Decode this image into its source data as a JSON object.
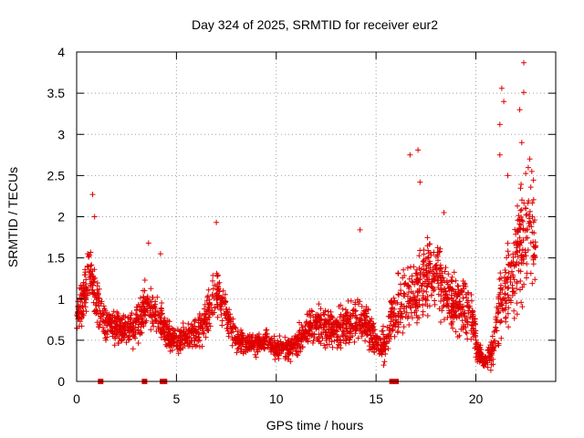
{
  "chart_data": {
    "type": "scatter",
    "title": "Day 324 of 2025, SRMTID for receiver eur2",
    "xlabel": "GPS time / hours",
    "ylabel": "SRMTID / TECUs",
    "xlim": [
      0,
      24
    ],
    "ylim": [
      0,
      4
    ],
    "grid": true,
    "marker": "+",
    "color": "#e00000",
    "x_ticks": [
      0,
      5,
      10,
      15,
      20
    ],
    "x_tick_labels": [
      "0",
      "5",
      "10",
      "15",
      "20"
    ],
    "y_ticks": [
      0,
      0.5,
      1,
      1.5,
      2,
      2.5,
      3,
      3.5,
      4
    ],
    "y_tick_labels": [
      "0",
      "0.5",
      "1",
      "1.5",
      "2",
      "2.5",
      "3",
      "3.5",
      "4"
    ],
    "profile": {
      "description": "Smoothed typical SRMTID level (TECU) vs GPS hour, with upper spread, used to represent the dense point cloud",
      "hours": [
        0,
        0.3,
        0.6,
        0.9,
        1.2,
        1.5,
        2,
        2.5,
        3,
        3.4,
        3.8,
        4.2,
        4.6,
        5,
        5.5,
        6,
        6.5,
        6.8,
        7.1,
        7.5,
        8,
        8.5,
        9,
        9.5,
        10,
        10.5,
        11,
        11.5,
        12,
        12.5,
        13,
        13.5,
        14,
        14.5,
        15,
        15.4,
        15.8,
        16.2,
        16.6,
        17,
        17.5,
        18,
        18.5,
        19,
        19.5,
        19.8,
        20.1,
        20.4,
        20.8,
        21.2,
        21.5,
        21.8,
        22.1,
        22.4,
        22.7,
        23
      ],
      "level": [
        0.8,
        1.0,
        1.35,
        1.1,
        0.8,
        0.7,
        0.65,
        0.6,
        0.7,
        0.9,
        0.85,
        0.75,
        0.55,
        0.5,
        0.55,
        0.6,
        0.75,
        1.0,
        1.05,
        0.8,
        0.5,
        0.45,
        0.45,
        0.5,
        0.4,
        0.4,
        0.45,
        0.6,
        0.7,
        0.65,
        0.6,
        0.7,
        0.75,
        0.7,
        0.45,
        0.4,
        0.8,
        0.9,
        1.05,
        1.1,
        1.25,
        1.35,
        1.05,
        0.9,
        0.9,
        0.8,
        0.35,
        0.25,
        0.35,
        0.9,
        1.1,
        1.2,
        1.6,
        1.7,
        2.0,
        1.5
      ],
      "spread": [
        0.3,
        0.4,
        0.45,
        0.4,
        0.35,
        0.3,
        0.25,
        0.25,
        0.3,
        0.35,
        0.3,
        0.25,
        0.2,
        0.2,
        0.2,
        0.25,
        0.3,
        0.4,
        0.35,
        0.3,
        0.2,
        0.15,
        0.15,
        0.15,
        0.15,
        0.15,
        0.2,
        0.25,
        0.3,
        0.3,
        0.3,
        0.35,
        0.4,
        0.35,
        0.2,
        0.25,
        0.4,
        0.5,
        0.55,
        0.6,
        0.55,
        0.5,
        0.45,
        0.4,
        0.4,
        0.4,
        0.15,
        0.1,
        0.25,
        0.6,
        0.7,
        0.7,
        0.9,
        0.9,
        0.95,
        0.7
      ]
    },
    "peaks": [
      {
        "x": 0.8,
        "y": 2.27
      },
      {
        "x": 0.9,
        "y": 2.0
      },
      {
        "x": 3.6,
        "y": 1.68
      },
      {
        "x": 4.2,
        "y": 1.55
      },
      {
        "x": 7.0,
        "y": 1.93
      },
      {
        "x": 14.2,
        "y": 1.84
      },
      {
        "x": 16.7,
        "y": 2.75
      },
      {
        "x": 17.1,
        "y": 2.81
      },
      {
        "x": 17.2,
        "y": 2.42
      },
      {
        "x": 18.4,
        "y": 2.05
      },
      {
        "x": 21.3,
        "y": 3.56
      },
      {
        "x": 21.4,
        "y": 3.4
      },
      {
        "x": 21.2,
        "y": 3.12
      },
      {
        "x": 21.2,
        "y": 2.75
      },
      {
        "x": 21.6,
        "y": 2.5
      },
      {
        "x": 22.2,
        "y": 3.3
      },
      {
        "x": 22.4,
        "y": 3.51
      },
      {
        "x": 22.4,
        "y": 3.87
      },
      {
        "x": 22.3,
        "y": 2.9
      },
      {
        "x": 22.7,
        "y": 2.7
      },
      {
        "x": 22.8,
        "y": 2.55
      }
    ],
    "baseline_markers": [
      {
        "x": 1.2,
        "y": 0
      },
      {
        "x": 3.4,
        "y": 0
      },
      {
        "x": 4.3,
        "y": 0
      },
      {
        "x": 4.4,
        "y": 0
      },
      {
        "x": 15.8,
        "y": 0
      },
      {
        "x": 15.9,
        "y": 0
      },
      {
        "x": 16.0,
        "y": 0
      }
    ]
  }
}
